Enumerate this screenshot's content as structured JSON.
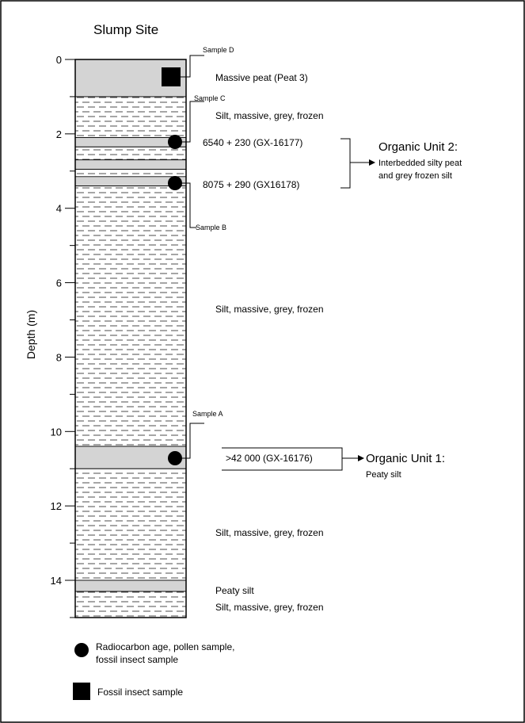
{
  "title": "Slump Site",
  "y_axis": {
    "label": "Depth (m)",
    "ticks": [
      "0",
      "2",
      "4",
      "6",
      "8",
      "10",
      "12",
      "14"
    ],
    "min": 0,
    "max": 15
  },
  "layers": [
    {
      "from": 0.0,
      "to": 1.0,
      "type": "peat"
    },
    {
      "from": 1.0,
      "to": 2.1,
      "type": "silt"
    },
    {
      "from": 2.1,
      "to": 2.35,
      "type": "peat"
    },
    {
      "from": 2.35,
      "to": 2.7,
      "type": "silt"
    },
    {
      "from": 2.7,
      "to": 2.95,
      "type": "peat"
    },
    {
      "from": 2.95,
      "to": 3.15,
      "type": "silt"
    },
    {
      "from": 3.15,
      "to": 3.4,
      "type": "peat"
    },
    {
      "from": 3.4,
      "to": 10.4,
      "type": "silt"
    },
    {
      "from": 10.4,
      "to": 11.0,
      "type": "peat"
    },
    {
      "from": 11.0,
      "to": 14.0,
      "type": "silt"
    },
    {
      "from": 14.0,
      "to": 14.3,
      "type": "peat"
    },
    {
      "from": 14.3,
      "to": 15.0,
      "type": "silt"
    }
  ],
  "samples": [
    {
      "label": "Sample D",
      "depth": 0.45,
      "marker": "square"
    },
    {
      "label": "Sample C",
      "depth": 2.2,
      "marker": "circle"
    },
    {
      "label": "Sample B",
      "depth": 3.25,
      "marker": "circle"
    },
    {
      "label": "Sample A",
      "depth": 10.65,
      "marker": "circle"
    }
  ],
  "descriptions": {
    "peat3": "Massive peat (Peat 3)",
    "silt_upper": "Silt, massive, grey, frozen",
    "age_c": "6540 + 230 (GX-16177)",
    "age_b": "8075 + 290 (GX16178)",
    "silt_middle": "Silt, massive, grey, frozen",
    "age_a": ">42 000 (GX-16176)",
    "silt_lower": "Silt, massive, grey, frozen",
    "peaty_silt": "Peaty silt",
    "silt_bottom": "Silt, massive, grey, frozen"
  },
  "units": {
    "unit2_title": "Organic Unit 2:",
    "unit2_line1": "Interbedded silty peat",
    "unit2_line2": "and grey frozen silt",
    "unit1_title": "Organic Unit 1:",
    "unit1_line1": "Peaty silt"
  },
  "legend": {
    "circle_line1": "Radiocarbon age, pollen sample,",
    "circle_line2": "fossil insect sample",
    "square": "Fossil insect sample"
  },
  "colors": {
    "peat_fill": "#d4d4d4",
    "silt_fill": "#ffffff",
    "ink": "#000000"
  }
}
